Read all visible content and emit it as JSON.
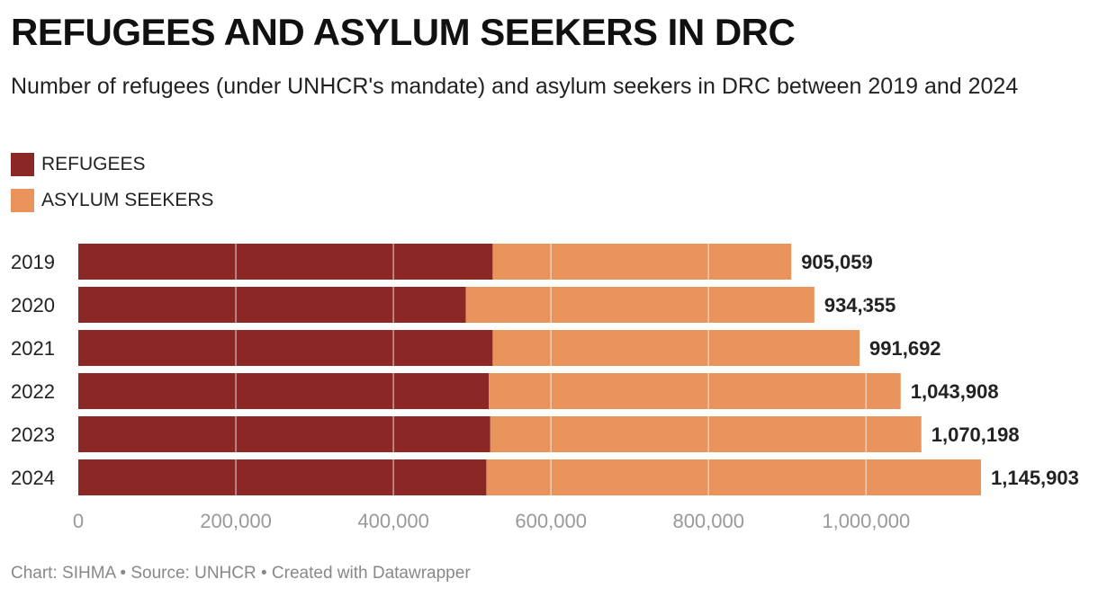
{
  "title": "REFUGEES AND ASYLUM SEEKERS IN DRC",
  "subtitle": "Number of refugees (under UNHCR's mandate) and asylum seekers in DRC between 2019 and 2024",
  "legend": [
    {
      "label": "REFUGEES",
      "color": "#8b2725"
    },
    {
      "label": "ASYLUM SEEKERS",
      "color": "#e8945c"
    }
  ],
  "footer": "Chart: SIHMA • Source: UNHCR • Created with Datawrapper",
  "chart_data": {
    "type": "bar",
    "orientation": "horizontal",
    "stacked": true,
    "categories": [
      "2019",
      "2020",
      "2021",
      "2022",
      "2023",
      "2024"
    ],
    "series": [
      {
        "name": "REFUGEES",
        "color": "#8b2725",
        "values": [
          526000,
          492000,
          526000,
          521000,
          523000,
          518000
        ]
      },
      {
        "name": "ASYLUM SEEKERS",
        "color": "#e8945c",
        "values": [
          379059,
          442355,
          465692,
          522908,
          547198,
          627903
        ]
      }
    ],
    "totals": [
      905059,
      934355,
      991692,
      1043908,
      1070198,
      1145903
    ],
    "total_labels": [
      "905,059",
      "934,355",
      "991,692",
      "1,043,908",
      "1,070,198",
      "1,145,903"
    ],
    "x_ticks": [
      0,
      200000,
      400000,
      600000,
      800000,
      1000000
    ],
    "x_tick_labels": [
      "0",
      "200,000",
      "400,000",
      "600,000",
      "800,000",
      "1,000,000"
    ],
    "xlim": [
      0,
      1145903
    ],
    "grid": true
  }
}
